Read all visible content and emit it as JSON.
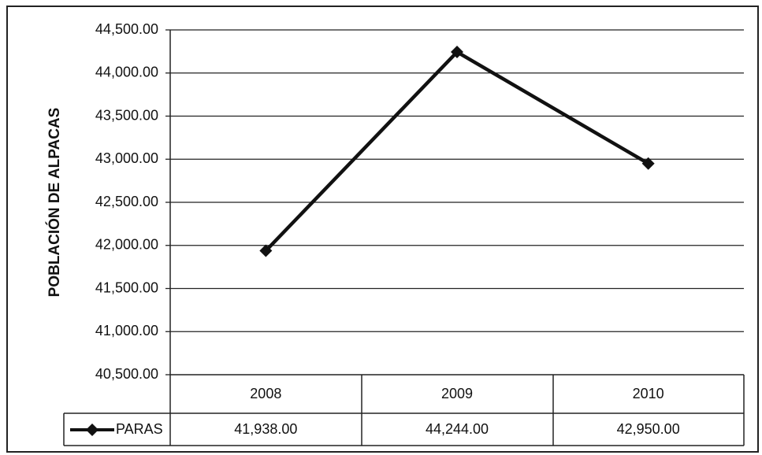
{
  "chart_data": {
    "type": "line",
    "title": "",
    "xlabel": "",
    "ylabel": "POBLACIÓN DE ALPACAS",
    "categories": [
      "2008",
      "2009",
      "2010"
    ],
    "series": [
      {
        "name": "PARAS",
        "values": [
          41938,
          44244,
          42950
        ],
        "value_labels": [
          "41,938.00",
          "44,244.00",
          "42,950.00"
        ],
        "color": "#111111",
        "marker": "diamond"
      }
    ],
    "ylim": [
      40500,
      44500
    ],
    "y_ticks": [
      40500,
      41000,
      41500,
      42000,
      42500,
      43000,
      43500,
      44000,
      44500
    ],
    "y_tick_labels": [
      "40,500.00",
      "41,000.00",
      "41,500.00",
      "42,000.00",
      "42,500.00",
      "43,000.00",
      "43,500.00",
      "44,000.00",
      "44,500.00"
    ],
    "grid": true,
    "legend": "data-table",
    "data_table": true
  }
}
